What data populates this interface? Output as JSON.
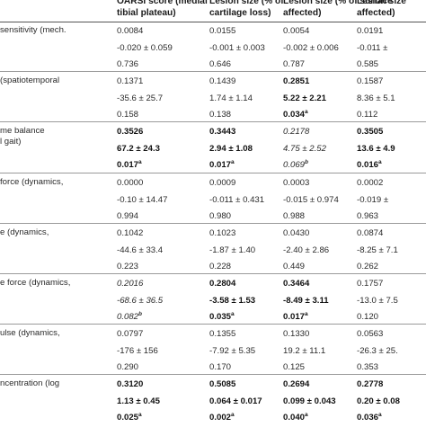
{
  "header": {
    "columns": [
      "",
      "OARSI score (medial\ntibial plateau)",
      "Lesion size (% of\ncartilage loss)",
      "Lesion size (% of surface\naffected)",
      "Lesion size\naffected)"
    ]
  },
  "rows": [
    {
      "label": "sensitivity (mech.",
      "lines": [
        [
          {
            "t": "0.0084"
          },
          {
            "t": "0.0155"
          },
          {
            "t": "0.0054"
          },
          {
            "t": "0.0191"
          }
        ],
        [
          {
            "t": "-0.020 ± 0.059"
          },
          {
            "t": "-0.001 ± 0.003"
          },
          {
            "t": "-0.002 ± 0.006"
          },
          {
            "t": "-0.011 ±"
          }
        ],
        [
          {
            "t": "0.736"
          },
          {
            "t": "0.646"
          },
          {
            "t": "0.787"
          },
          {
            "t": "0.585"
          }
        ]
      ]
    },
    {
      "label": "(spatiotemporal",
      "lines": [
        [
          {
            "t": "0.1371"
          },
          {
            "t": "0.1439"
          },
          {
            "t": "0.2851",
            "b": true
          },
          {
            "t": "0.1587"
          }
        ],
        [
          {
            "t": "-35.6 ± 25.7"
          },
          {
            "t": "1.74 ± 1.14"
          },
          {
            "t": "5.22 ± 2.21",
            "b": true
          },
          {
            "t": "8.36 ± 5.1"
          }
        ],
        [
          {
            "t": "0.158"
          },
          {
            "t": "0.138"
          },
          {
            "t": "0.034",
            "b": true,
            "s": "a"
          },
          {
            "t": "0.112"
          }
        ]
      ]
    },
    {
      "label": "me balance\nl gait)",
      "lines": [
        [
          {
            "t": "0.3526",
            "b": true
          },
          {
            "t": "0.3443",
            "b": true
          },
          {
            "t": "0.2178",
            "i": true
          },
          {
            "t": "0.3505",
            "b": true
          }
        ],
        [
          {
            "t": "67.2 ± 24.3",
            "b": true
          },
          {
            "t": "2.94 ± 1.08",
            "b": true
          },
          {
            "t": "4.75 ± 2.52",
            "i": true
          },
          {
            "t": "13.6 ± 4.9",
            "b": true
          }
        ],
        [
          {
            "t": "0.017",
            "b": true,
            "s": "a"
          },
          {
            "t": "0.017",
            "b": true,
            "s": "a"
          },
          {
            "t": "0.069",
            "i": true,
            "s": "b"
          },
          {
            "t": "0.016",
            "b": true,
            "s": "a"
          }
        ]
      ]
    },
    {
      "label": "force (dynamics,",
      "lines": [
        [
          {
            "t": "0.0000"
          },
          {
            "t": "0.0009"
          },
          {
            "t": "0.0003"
          },
          {
            "t": "0.0002"
          }
        ],
        [
          {
            "t": "-0.10 ± 14.47"
          },
          {
            "t": "-0.011 ± 0.431"
          },
          {
            "t": "-0.015 ± 0.974"
          },
          {
            "t": "-0.019 ±"
          }
        ],
        [
          {
            "t": "0.994"
          },
          {
            "t": "0.980"
          },
          {
            "t": "0.988"
          },
          {
            "t": "0.963"
          }
        ]
      ]
    },
    {
      "label": "e (dynamics,",
      "lines": [
        [
          {
            "t": "0.1042"
          },
          {
            "t": "0.1023"
          },
          {
            "t": "0.0430"
          },
          {
            "t": "0.0874"
          }
        ],
        [
          {
            "t": "-44.6 ± 33.4"
          },
          {
            "t": "-1.87 ± 1.40"
          },
          {
            "t": "-2.40 ± 2.86"
          },
          {
            "t": "-8.25 ± 7.1"
          }
        ],
        [
          {
            "t": "0.223"
          },
          {
            "t": "0.228"
          },
          {
            "t": "0.449"
          },
          {
            "t": "0.262"
          }
        ]
      ]
    },
    {
      "label": "e force (dynamics,",
      "lines": [
        [
          {
            "t": "0.2016",
            "i": true
          },
          {
            "t": "0.2804",
            "b": true
          },
          {
            "t": "0.3464",
            "b": true
          },
          {
            "t": "0.1757"
          }
        ],
        [
          {
            "t": "-68.6 ± 36.5",
            "i": true
          },
          {
            "t": "-3.58 ± 1.53",
            "b": true
          },
          {
            "t": "-8.49 ± 3.11",
            "b": true
          },
          {
            "t": "-13.0 ± 7.5"
          }
        ],
        [
          {
            "t": "0.082",
            "i": true,
            "s": "b"
          },
          {
            "t": "0.035",
            "b": true,
            "s": "a"
          },
          {
            "t": "0.017",
            "b": true,
            "s": "a"
          },
          {
            "t": "0.120"
          }
        ]
      ]
    },
    {
      "label": "ulse (dynamics,",
      "lines": [
        [
          {
            "t": "0.0797"
          },
          {
            "t": "0.1355"
          },
          {
            "t": "0.1330"
          },
          {
            "t": "0.0563"
          }
        ],
        [
          {
            "t": "-176 ± 156"
          },
          {
            "t": "-7.92 ± 5.35"
          },
          {
            "t": "19.2 ± 11.1"
          },
          {
            "t": "-26.3 ± 25."
          }
        ],
        [
          {
            "t": "0.290"
          },
          {
            "t": "0.170"
          },
          {
            "t": "0.125"
          },
          {
            "t": "0.353"
          }
        ]
      ]
    },
    {
      "label": "ncentration (log",
      "lines": [
        [
          {
            "t": "0.3120",
            "b": true
          },
          {
            "t": "0.5085",
            "b": true
          },
          {
            "t": "0.2694",
            "b": true
          },
          {
            "t": "0.2778",
            "b": true
          }
        ],
        [
          {
            "t": "1.13 ± 0.45",
            "b": true
          },
          {
            "t": "0.064 ± 0.017",
            "b": true
          },
          {
            "t": "0.099 ± 0.043",
            "b": true
          },
          {
            "t": "0.20 ± 0.08",
            "b": true
          }
        ],
        [
          {
            "t": "0.025",
            "b": true,
            "s": "a"
          },
          {
            "t": "0.002",
            "b": true,
            "s": "a"
          },
          {
            "t": "0.040",
            "b": true,
            "s": "a"
          },
          {
            "t": "0.036",
            "b": true,
            "s": "a"
          }
        ]
      ]
    }
  ]
}
